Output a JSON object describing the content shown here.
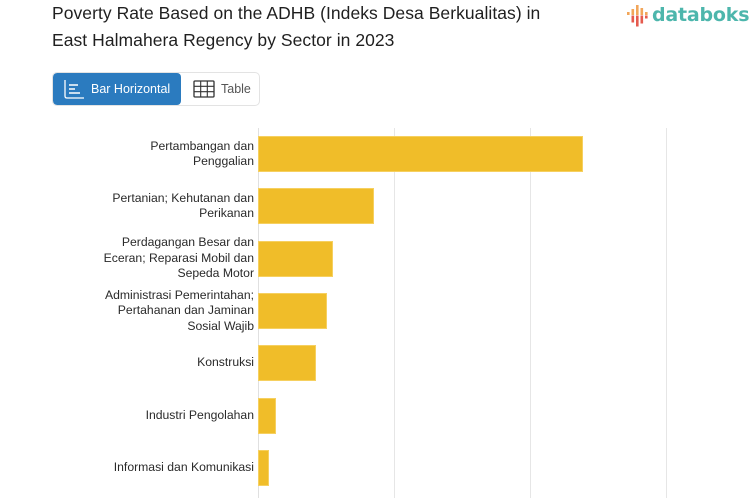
{
  "header": {
    "title_line1": "Poverty Rate Based on the ADHB (Indeks Desa Berkualitas) in",
    "title_line2": "East Halmahera Regency by Sector in 2023"
  },
  "brand": {
    "logo_text": "databoks",
    "logo_icon": "bar-signal-icon",
    "logo_color": "#4db6ac",
    "logo_icon_colors": [
      "#e55a4e",
      "#f2a65a"
    ]
  },
  "view_toggle": {
    "options": [
      {
        "label": "Bar Horizontal",
        "icon": "bar-horizontal-icon",
        "active": true
      },
      {
        "label": "Table",
        "icon": "table-grid-icon",
        "active": false
      }
    ],
    "active_color": "#2b7bbf"
  },
  "chart_data": {
    "type": "bar",
    "orientation": "horizontal",
    "title": "Poverty Rate Based on the ADHB (Indeks Desa Berkualitas) in East Halmahera Regency by Sector in 2023",
    "xlabel": "",
    "ylabel": "",
    "categories": [
      "Pertambangan dan Penggalian",
      "Pertanian; Kehutanan dan Perikanan",
      "Perdagangan Besar dan Eceran; Reparasi Mobil dan Sepeda Motor",
      "Administrasi Pemerintahan; Pertahanan dan Jaminan Sosial Wajib",
      "Konstruksi",
      "Industri Pengolahan",
      "Informasi dan Komunikasi"
    ],
    "category_label_lines": [
      [
        "Pertambangan dan",
        "Penggalian"
      ],
      [
        "Pertanian; Kehutanan dan",
        "Perikanan"
      ],
      [
        "Perdagangan Besar dan",
        "Eceran; Reparasi Mobil dan",
        "Sepeda Motor"
      ],
      [
        "Administrasi Pemerintahan;",
        "Pertahanan dan Jaminan",
        "Sosial Wajib"
      ],
      [
        "Konstruksi"
      ],
      [
        "Industri Pengolahan"
      ],
      [
        "Informasi dan Komunikasi"
      ]
    ],
    "values": [
      2.39,
      0.85,
      0.55,
      0.51,
      0.43,
      0.13,
      0.08
    ],
    "value_unit_note": "relative units (1 = one gridline interval); axis tick labels not visible",
    "xlim": [
      0,
      3.6
    ],
    "gridlines": [
      0,
      1,
      2,
      3
    ],
    "grid": true,
    "legend": null,
    "bar_color": "#f0bd29"
  }
}
